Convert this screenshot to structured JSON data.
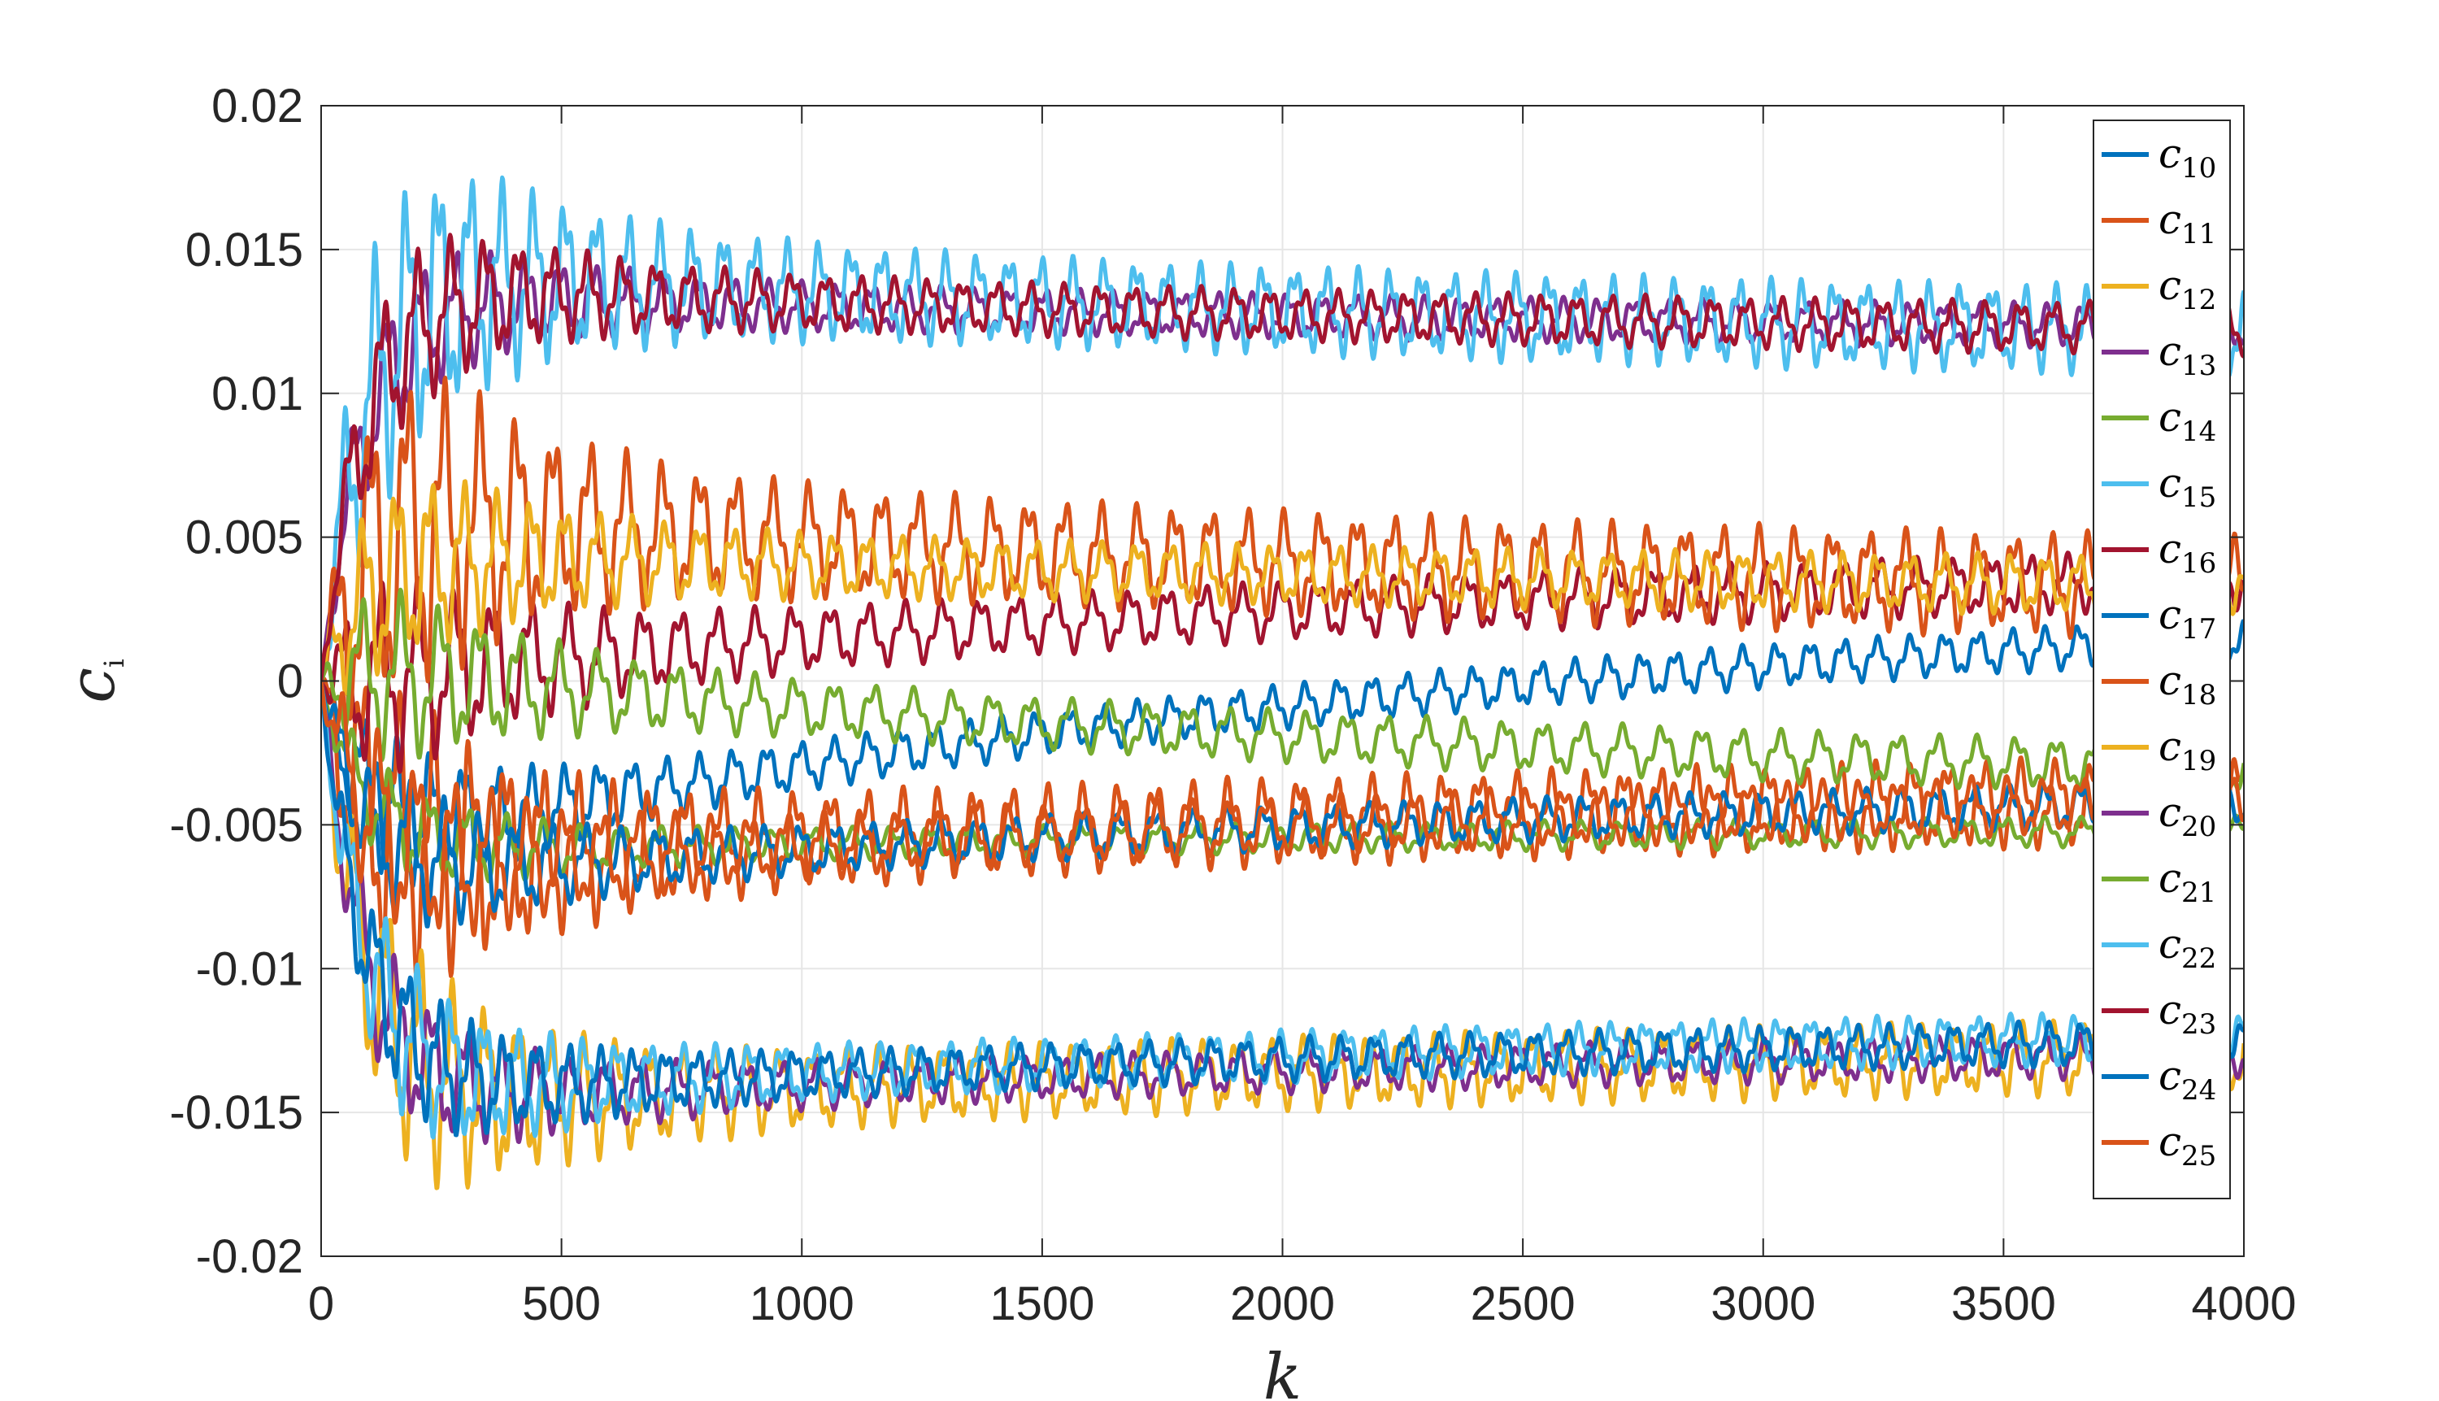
{
  "chart_data": {
    "type": "line",
    "xlabel": "k",
    "ylabel_main": "c",
    "ylabel_sub": "i",
    "xlim": [
      0,
      4000
    ],
    "ylim": [
      -0.02,
      0.02
    ],
    "x_ticks": [
      "0",
      "500",
      "1000",
      "1500",
      "2000",
      "2500",
      "3000",
      "3500",
      "4000"
    ],
    "y_ticks": [
      "-0.02",
      "-0.015",
      "-0.01",
      "-0.005",
      "0",
      "0.005",
      "0.01",
      "0.015",
      "0.02"
    ],
    "grid": true,
    "legend_position": "top-right",
    "colors": [
      "#0072BD",
      "#D95319",
      "#EDB120",
      "#7E2F8E",
      "#77AC30",
      "#4DBEEE",
      "#A2142F"
    ],
    "series": [
      {
        "name": "c",
        "sub": "10",
        "asymptote": 0.0035,
        "peak": -0.006,
        "amp": 0.0006,
        "period": 70,
        "color": "#0072BD"
      },
      {
        "name": "c",
        "sub": "11",
        "asymptote": -0.0035,
        "peak": -0.0065,
        "amp": 0.0012,
        "period": 75,
        "color": "#D95319"
      },
      {
        "name": "c",
        "sub": "12",
        "asymptote": -0.0125,
        "peak": -0.015,
        "amp": 0.001,
        "period": 68,
        "color": "#EDB120"
      },
      {
        "name": "c",
        "sub": "13",
        "asymptote": 0.012,
        "peak": 0.0135,
        "amp": 0.0006,
        "period": 72,
        "color": "#7E2F8E"
      },
      {
        "name": "c",
        "sub": "14",
        "asymptote": -0.005,
        "peak": -0.006,
        "amp": 0.0004,
        "period": 80,
        "color": "#77AC30"
      },
      {
        "name": "c",
        "sub": "15",
        "asymptote": 0.0115,
        "peak": 0.0145,
        "amp": 0.0012,
        "period": 66,
        "color": "#4DBEEE"
      },
      {
        "name": "c",
        "sub": "16",
        "asymptote": 0.0045,
        "peak": 0.0,
        "amp": 0.0008,
        "period": 78,
        "color": "#A2142F"
      },
      {
        "name": "c",
        "sub": "17",
        "asymptote": -0.0035,
        "peak": -0.007,
        "amp": 0.0006,
        "period": 74,
        "color": "#0072BD"
      },
      {
        "name": "c",
        "sub": "18",
        "asymptote": 0.0025,
        "peak": 0.006,
        "amp": 0.0014,
        "period": 76,
        "color": "#D95319"
      },
      {
        "name": "c",
        "sub": "19",
        "asymptote": 0.003,
        "peak": 0.0045,
        "amp": 0.0008,
        "period": 70,
        "color": "#EDB120"
      },
      {
        "name": "c",
        "sub": "20",
        "asymptote": -0.0125,
        "peak": -0.0148,
        "amp": 0.0006,
        "period": 73,
        "color": "#7E2F8E"
      },
      {
        "name": "c",
        "sub": "21",
        "asymptote": -0.004,
        "peak": 0.0005,
        "amp": 0.0007,
        "period": 82,
        "color": "#77AC30"
      },
      {
        "name": "c",
        "sub": "22",
        "asymptote": -0.0118,
        "peak": -0.0145,
        "amp": 0.0007,
        "period": 69,
        "color": "#4DBEEE"
      },
      {
        "name": "c",
        "sub": "23",
        "asymptote": 0.0118,
        "peak": 0.0138,
        "amp": 0.0007,
        "period": 71,
        "color": "#A2142F"
      },
      {
        "name": "c",
        "sub": "24",
        "asymptote": -0.012,
        "peak": -0.0145,
        "amp": 0.0006,
        "period": 67,
        "color": "#0072BD"
      },
      {
        "name": "c",
        "sub": "25",
        "asymptote": -0.0035,
        "peak": -0.0068,
        "amp": 0.0008,
        "period": 77,
        "color": "#D95319"
      }
    ]
  }
}
